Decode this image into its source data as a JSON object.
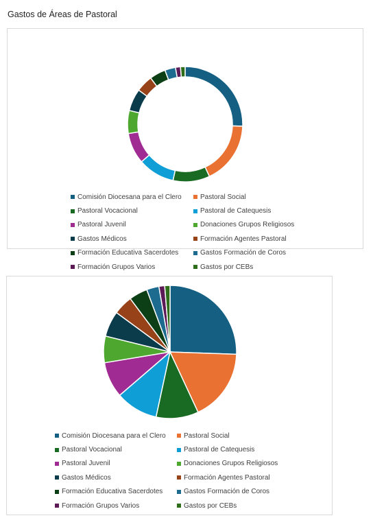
{
  "page": {
    "title": "Gastos de Áreas de Pastoral"
  },
  "chart_data": [
    {
      "type": "pie",
      "variant": "doughnut",
      "title": "",
      "legend_position": "bottom",
      "categories": [
        "Comisión Diocesana para el Clero",
        "Pastoral Social",
        "Pastoral Vocacional",
        "Pastoral de Catequesis",
        "Pastoral Juvenil",
        "Donaciones Grupos Religiosos",
        "Gastos Médicos",
        "Formación Agentes Pastoral",
        "Formación Educativa Sacerdotes",
        "Gastos Formación de Coros",
        "Formación Grupos Varios",
        "Gastos por CEBs"
      ],
      "values": [
        23.8,
        16.3,
        9.6,
        9.6,
        8.1,
        6.0,
        5.8,
        4.4,
        4.2,
        2.8,
        1.3,
        1.2
      ],
      "colors": [
        "#156082",
        "#e97132",
        "#196b24",
        "#0f9ed5",
        "#a02b93",
        "#4ea72e",
        "#0b3c4c",
        "#974219",
        "#0d3f16",
        "#1d6b8e",
        "#5c1a56",
        "#2e6d19"
      ]
    },
    {
      "type": "pie",
      "title": "",
      "legend_position": "bottom",
      "categories": [
        "Comisión Diocesana para el Clero",
        "Pastoral Social",
        "Pastoral Vocacional",
        "Pastoral de Catequesis",
        "Pastoral Juvenil",
        "Donaciones Grupos Religiosos",
        "Gastos Médicos",
        "Formación Agentes Pastoral",
        "Formación Educativa Sacerdotes",
        "Gastos Formación de Coros",
        "Formación Grupos Varios",
        "Gastos por CEBs"
      ],
      "values": [
        23.8,
        16.3,
        9.6,
        9.6,
        8.1,
        6.0,
        5.8,
        4.4,
        4.2,
        2.8,
        1.3,
        1.2
      ],
      "colors": [
        "#156082",
        "#e97132",
        "#196b24",
        "#0f9ed5",
        "#a02b93",
        "#4ea72e",
        "#0b3c4c",
        "#974219",
        "#0d3f16",
        "#1d6b8e",
        "#5c1a56",
        "#2e6d19"
      ]
    }
  ]
}
